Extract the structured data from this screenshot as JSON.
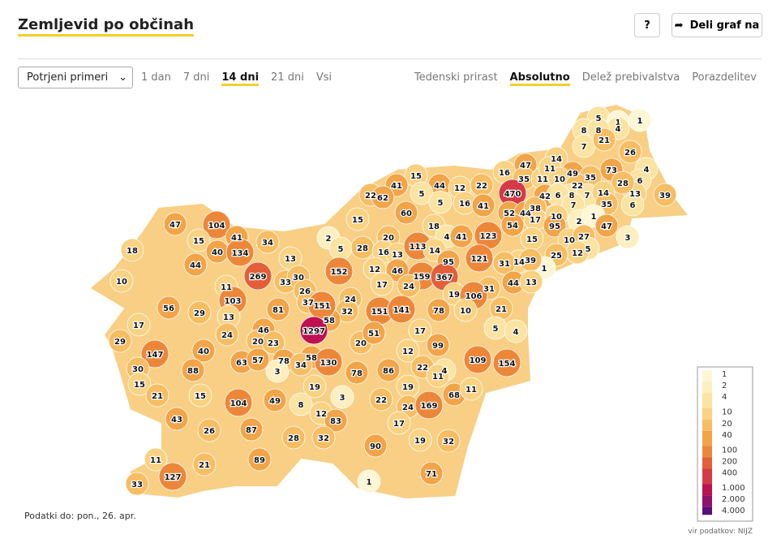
{
  "header": {
    "title": "Zemljevid po občinah",
    "help": "?",
    "share": "Deli graf na"
  },
  "controls": {
    "select": "Potrjeni primeri",
    "periods": [
      "1 dan",
      "7 dni",
      "14 dni",
      "21 dni",
      "Vsi"
    ],
    "period_active": 2,
    "modes": [
      "Tedenski prirast",
      "Absolutno",
      "Delež prebivalstva",
      "Porazdelitev"
    ],
    "mode_active": 1
  },
  "chart_data": {
    "type": "choropleth",
    "values": [
      5,
      1,
      4,
      1,
      8,
      8,
      7,
      21,
      26,
      4,
      6,
      13,
      14,
      47,
      16,
      35,
      11,
      11,
      49,
      35,
      73,
      28,
      39,
      10,
      22,
      8,
      7,
      14,
      42,
      6,
      470,
      35,
      6,
      7,
      2,
      52,
      44,
      38,
      17,
      10,
      95,
      1,
      47,
      54,
      15,
      10,
      27,
      5,
      3,
      12,
      25,
      1,
      14,
      39,
      31,
      44,
      13,
      21,
      5,
      4,
      15,
      44,
      12,
      22,
      41,
      22,
      62,
      5,
      5,
      16,
      41,
      60,
      15,
      18,
      4,
      41,
      123,
      2,
      5,
      28,
      20,
      16,
      13,
      113,
      14,
      95,
      121,
      12,
      46,
      159,
      367,
      152,
      19,
      17,
      24,
      31,
      106,
      10,
      78,
      151,
      141,
      24,
      32,
      58,
      47,
      104,
      41,
      34,
      15,
      40,
      134,
      13,
      44,
      18,
      10,
      269,
      33,
      30,
      11,
      26,
      103,
      37,
      151,
      56,
      29,
      13,
      81,
      17,
      24,
      1297,
      46,
      20,
      23,
      29,
      147,
      40,
      63,
      57,
      78,
      58,
      34,
      130,
      20,
      51,
      17,
      99,
      12,
      109,
      154,
      30,
      15,
      88,
      3,
      22,
      4,
      11,
      78,
      86,
      19,
      21,
      15,
      104,
      49,
      8,
      3,
      22,
      19,
      68,
      11,
      24,
      169,
      12,
      83,
      43,
      26,
      87,
      28,
      17,
      32,
      19,
      32,
      90,
      11,
      21,
      89,
      127,
      33,
      71,
      1
    ],
    "legend": {
      "ticks": [
        1,
        2,
        4,
        10,
        20,
        40,
        100,
        200,
        400,
        {
          "value": 1000,
          "label": "1.000"
        },
        {
          "value": 2000,
          "label": "2.000"
        },
        {
          "value": 4000,
          "label": "4.000"
        }
      ],
      "colors": [
        "#fff6d5",
        "#fdefbf",
        "#fbe3a0",
        "#f9d282",
        "#f6bd62",
        "#f2a448",
        "#ec873a",
        "#e25f39",
        "#d53a47",
        "#bd1152",
        "#920f6a",
        "#570f77"
      ]
    },
    "note": "Podatki do: pon., 26. apr.",
    "source": "vir podatkov: NIJZ"
  }
}
